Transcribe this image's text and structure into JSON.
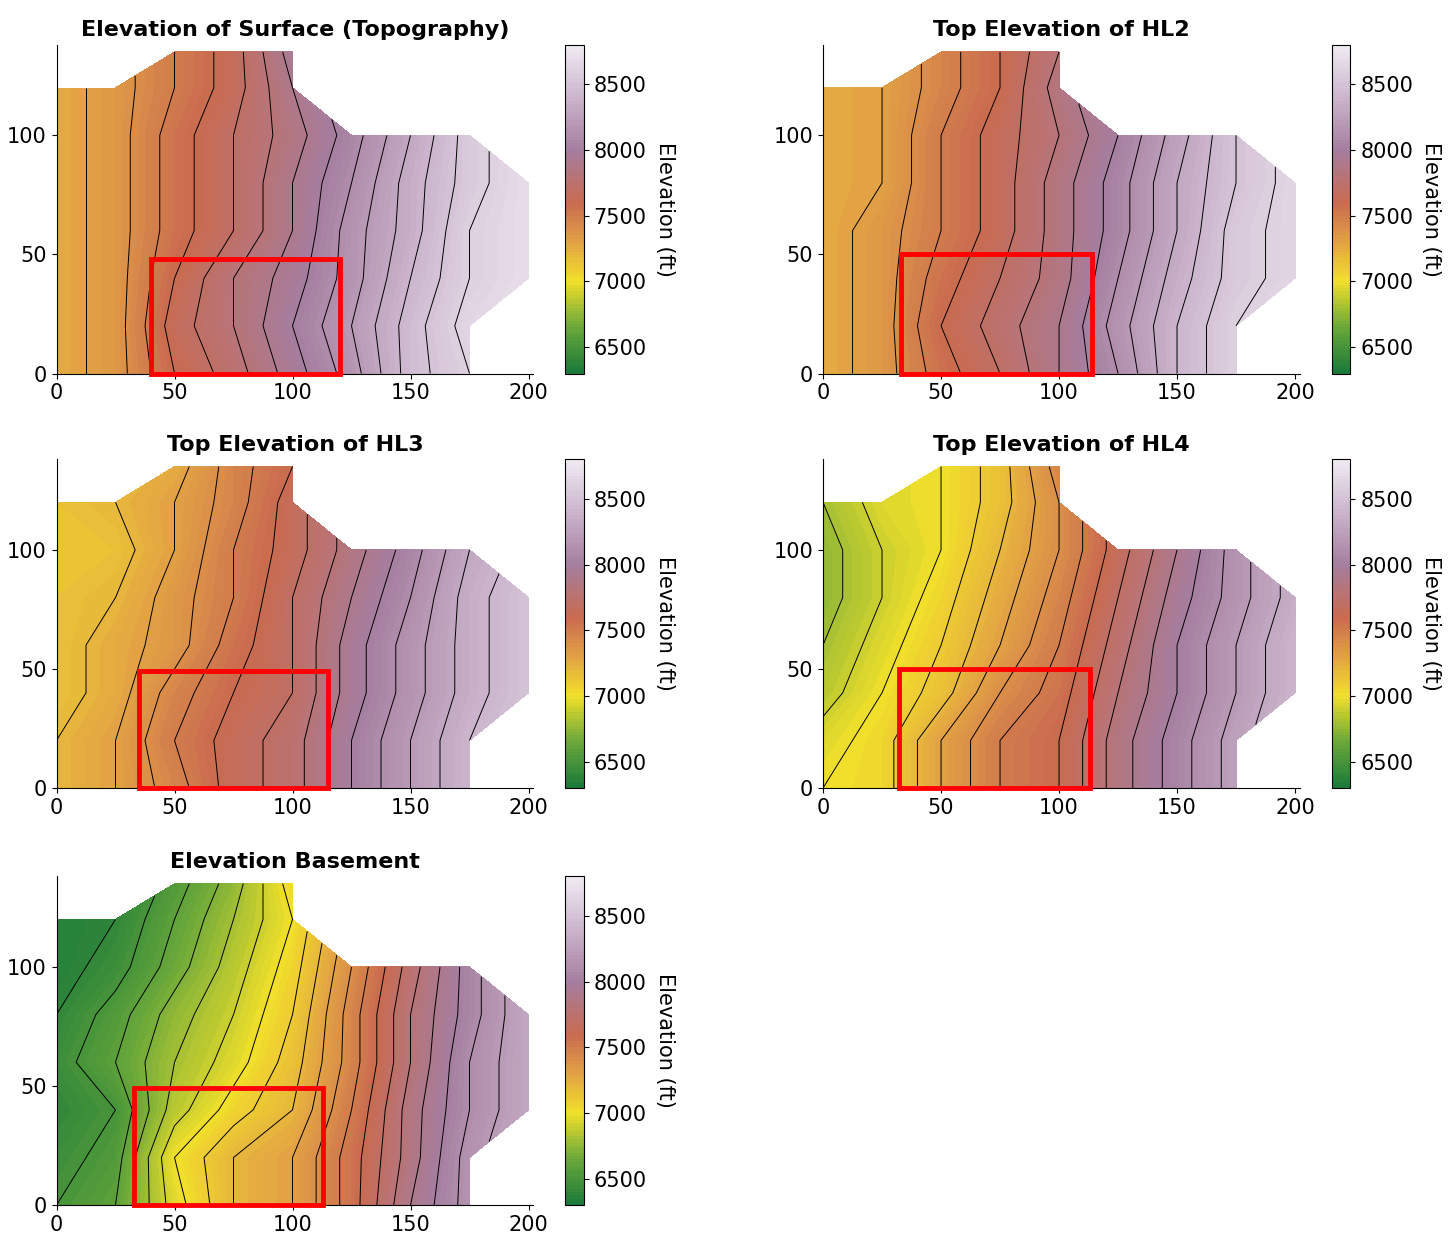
{
  "chart_data": [
    {
      "type": "contour",
      "title": "Elevation of Surface (Topography)",
      "x": [
        0,
        25,
        50,
        75,
        100,
        125,
        150,
        175,
        200
      ],
      "y": [
        0,
        20,
        40,
        60,
        80,
        100,
        120,
        135
      ],
      "z": [
        [
          7250,
          7350,
          7600,
          7750,
          7950,
          8150,
          8450,
          8600,
          null
        ],
        [
          7250,
          7350,
          7650,
          7800,
          8000,
          8200,
          8450,
          8650,
          null
        ],
        [
          7250,
          7350,
          7600,
          7800,
          7950,
          8150,
          8400,
          8600,
          8700
        ],
        [
          7250,
          7350,
          7550,
          7700,
          7900,
          8150,
          8350,
          8600,
          8700
        ],
        [
          7250,
          7350,
          7550,
          7700,
          7900,
          8100,
          8350,
          8550,
          8700
        ],
        [
          7250,
          7350,
          7550,
          7700,
          7850,
          8050,
          8300,
          8550,
          null
        ],
        [
          7250,
          7350,
          7500,
          7650,
          7900,
          null,
          null,
          null,
          null
        ],
        [
          null,
          null,
          7500,
          7650,
          7950,
          null,
          null,
          null,
          null
        ]
      ],
      "xlim": [
        0,
        202
      ],
      "ylim": [
        0,
        138
      ],
      "xticks": [
        0,
        50,
        100,
        150,
        200
      ],
      "yticks": [
        0,
        50,
        100
      ],
      "clim": [
        6300,
        8800
      ],
      "colorbar_ticks": [
        6500,
        7000,
        7500,
        8000,
        8500
      ],
      "colorbar_label": "Elevation (ft)",
      "contour_levels": [
        6300,
        6400,
        6500,
        6600,
        6700,
        6800,
        6900,
        7000,
        7100,
        7200,
        7300,
        7400,
        7500,
        7600,
        7700,
        7800,
        7900,
        8000,
        8100,
        8200,
        8300,
        8400,
        8500,
        8600,
        8700,
        8800
      ],
      "highlight_box": {
        "x": [
          40,
          120
        ],
        "y": [
          0,
          48
        ]
      },
      "color": "#ff0000"
    },
    {
      "type": "contour",
      "title": "Top Elevation of HL2",
      "x": [
        0,
        25,
        50,
        75,
        100,
        125,
        150,
        175,
        200
      ],
      "y": [
        0,
        20,
        40,
        60,
        80,
        100,
        120,
        135
      ],
      "z": [
        [
          7250,
          7350,
          7550,
          7700,
          7900,
          8100,
          8400,
          8600,
          null
        ],
        [
          7250,
          7350,
          7600,
          7750,
          7900,
          8150,
          8400,
          8600,
          null
        ],
        [
          7250,
          7350,
          7550,
          7700,
          7850,
          8100,
          8350,
          8550,
          8650
        ],
        [
          7250,
          7350,
          7500,
          7650,
          7850,
          8050,
          8300,
          8550,
          8650
        ],
        [
          7250,
          7300,
          7500,
          7650,
          7850,
          8050,
          8300,
          8500,
          8650
        ],
        [
          7250,
          7300,
          7500,
          7650,
          7800,
          8000,
          8250,
          8500,
          null
        ],
        [
          7250,
          7300,
          7450,
          7600,
          7850,
          null,
          null,
          null,
          null
        ],
        [
          null,
          null,
          7450,
          7600,
          7800,
          null,
          null,
          null,
          null
        ]
      ],
      "xlim": [
        0,
        202
      ],
      "ylim": [
        0,
        138
      ],
      "xticks": [
        0,
        50,
        100,
        150,
        200
      ],
      "yticks": [
        0,
        50,
        100
      ],
      "clim": [
        6300,
        8800
      ],
      "colorbar_ticks": [
        6500,
        7000,
        7500,
        8000,
        8500
      ],
      "colorbar_label": "Elevation (ft)",
      "contour_levels": [
        6300,
        6400,
        6500,
        6600,
        6700,
        6800,
        6900,
        7000,
        7100,
        7200,
        7300,
        7400,
        7500,
        7600,
        7700,
        7800,
        7900,
        8000,
        8100,
        8200,
        8300,
        8400,
        8500,
        8600,
        8700,
        8800
      ],
      "highlight_box": {
        "x": [
          33,
          114
        ],
        "y": [
          0,
          50
        ]
      },
      "color": "#ff0000"
    },
    {
      "type": "contour",
      "title": "Top Elevation of HL3",
      "x": [
        0,
        25,
        50,
        75,
        100,
        125,
        150,
        175,
        200
      ],
      "y": [
        0,
        20,
        40,
        60,
        80,
        100,
        120,
        135
      ],
      "z": [
        [
          7200,
          7300,
          7450,
          7650,
          7750,
          8000,
          8200,
          8400,
          null
        ],
        [
          7200,
          7300,
          7500,
          7650,
          7750,
          8000,
          8200,
          8400,
          null
        ],
        [
          7150,
          7250,
          7450,
          7600,
          7700,
          7950,
          8150,
          8350,
          8500
        ],
        [
          7150,
          7250,
          7350,
          7550,
          7700,
          7950,
          8150,
          8350,
          8500
        ],
        [
          7150,
          7200,
          7350,
          7500,
          7700,
          7900,
          8100,
          8350,
          8500
        ],
        [
          7150,
          7150,
          7300,
          7500,
          7650,
          7850,
          8050,
          8300,
          null
        ],
        [
          7150,
          7200,
          7300,
          7450,
          7650,
          null,
          null,
          null,
          null
        ],
        [
          null,
          null,
          7250,
          7450,
          7600,
          null,
          null,
          null,
          null
        ]
      ],
      "xlim": [
        0,
        202
      ],
      "ylim": [
        0,
        138
      ],
      "xticks": [
        0,
        50,
        100,
        150,
        200
      ],
      "yticks": [
        0,
        50,
        100
      ],
      "clim": [
        6300,
        8800
      ],
      "colorbar_ticks": [
        6500,
        7000,
        7500,
        8000,
        8500
      ],
      "colorbar_label": "Elevation (ft)",
      "contour_levels": [
        6300,
        6400,
        6500,
        6600,
        6700,
        6800,
        6900,
        7000,
        7100,
        7200,
        7300,
        7400,
        7500,
        7600,
        7700,
        7800,
        7900,
        8000,
        8100,
        8200,
        8300,
        8400,
        8500,
        8600,
        8700,
        8800
      ],
      "highlight_box": {
        "x": [
          35,
          115
        ],
        "y": [
          0,
          49
        ]
      },
      "color": "#ff0000"
    },
    {
      "type": "contour",
      "title": "Top Elevation of HL4",
      "x": [
        0,
        25,
        50,
        75,
        100,
        125,
        150,
        175,
        200
      ],
      "y": [
        0,
        20,
        40,
        60,
        80,
        100,
        120,
        135
      ],
      "z": [
        [
          7000,
          7050,
          7300,
          7500,
          7600,
          7850,
          8050,
          8250,
          null
        ],
        [
          6950,
          7050,
          7300,
          7500,
          7600,
          7850,
          8050,
          8250,
          null
        ],
        [
          6850,
          7000,
          7150,
          7400,
          7550,
          7800,
          8000,
          8200,
          8400
        ],
        [
          6800,
          6950,
          7100,
          7300,
          7500,
          7750,
          8000,
          8200,
          8400
        ],
        [
          6750,
          6900,
          7050,
          7250,
          7450,
          7700,
          7950,
          8150,
          8350
        ],
        [
          6750,
          6900,
          7000,
          7200,
          7400,
          7650,
          7900,
          8150,
          null
        ],
        [
          6800,
          6950,
          7000,
          7150,
          7400,
          null,
          null,
          null,
          null
        ],
        [
          null,
          null,
          7000,
          7150,
          7450,
          null,
          null,
          null,
          null
        ]
      ],
      "xlim": [
        0,
        202
      ],
      "ylim": [
        0,
        138
      ],
      "xticks": [
        0,
        50,
        100,
        150,
        200
      ],
      "yticks": [
        0,
        50,
        100
      ],
      "clim": [
        6300,
        8800
      ],
      "colorbar_ticks": [
        6500,
        7000,
        7500,
        8000,
        8500
      ],
      "colorbar_label": "Elevation (ft)",
      "contour_levels": [
        6300,
        6400,
        6500,
        6600,
        6700,
        6800,
        6900,
        7000,
        7100,
        7200,
        7300,
        7400,
        7500,
        7600,
        7700,
        7800,
        7900,
        8000,
        8100,
        8200,
        8300,
        8400,
        8500,
        8600,
        8700,
        8800
      ],
      "highlight_box": {
        "x": [
          32,
          113
        ],
        "y": [
          0,
          50
        ]
      },
      "color": "#ff0000"
    },
    {
      "type": "contour",
      "title": "Elevation Basement",
      "x": [
        0,
        25,
        50,
        75,
        100,
        125,
        150,
        175,
        200
      ],
      "y": [
        0,
        20,
        40,
        60,
        80,
        100,
        120,
        135
      ],
      "z": [
        [
          6500,
          6600,
          6950,
          7200,
          7300,
          7550,
          7900,
          8150,
          null
        ],
        [
          6450,
          6550,
          7000,
          7200,
          7300,
          7550,
          7850,
          8150,
          null
        ],
        [
          6400,
          6500,
          6850,
          7050,
          7200,
          7500,
          7850,
          8100,
          8300
        ],
        [
          6450,
          6600,
          6800,
          6950,
          7150,
          7450,
          7800,
          8100,
          8300
        ],
        [
          6400,
          6550,
          6750,
          6900,
          7100,
          7450,
          7800,
          8050,
          8300
        ],
        [
          6350,
          6450,
          6650,
          6850,
          7050,
          7400,
          7750,
          8050,
          null
        ],
        [
          6350,
          6400,
          6600,
          6800,
          7000,
          null,
          null,
          null,
          null
        ],
        [
          null,
          null,
          6550,
          6750,
          7050,
          null,
          null,
          null,
          null
        ]
      ],
      "xlim": [
        0,
        202
      ],
      "ylim": [
        0,
        138
      ],
      "xticks": [
        0,
        50,
        100,
        150,
        200
      ],
      "yticks": [
        0,
        50,
        100
      ],
      "clim": [
        6300,
        8800
      ],
      "colorbar_ticks": [
        6500,
        7000,
        7500,
        8000,
        8500
      ],
      "colorbar_label": "Elevation (ft)",
      "contour_levels": [
        6300,
        6400,
        6500,
        6600,
        6700,
        6800,
        6900,
        7000,
        7100,
        7200,
        7300,
        7400,
        7500,
        7600,
        7700,
        7800,
        7900,
        8000,
        8100,
        8200,
        8300,
        8400,
        8500,
        8600,
        8700,
        8800
      ],
      "highlight_box": {
        "x": [
          33,
          113
        ],
        "y": [
          0,
          49
        ]
      },
      "color": "#ff0000"
    }
  ]
}
